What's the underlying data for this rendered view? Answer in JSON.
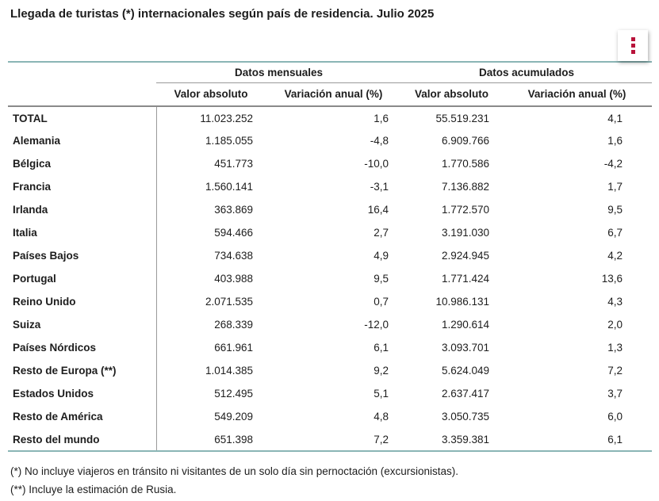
{
  "title": "Llegada de turistas (*) internacionales según país de residencia. Julio 2025",
  "menu_button": {
    "icon": "kebab-menu-icon"
  },
  "table": {
    "group_headers": [
      {
        "label": "Datos mensuales"
      },
      {
        "label": "Datos acumulados"
      }
    ],
    "column_headers": [
      "Valor absoluto",
      "Variación anual (%)",
      "Valor absoluto",
      "Variación anual (%)"
    ],
    "rows": [
      {
        "label": "TOTAL",
        "monthly_value": "11.023.252",
        "monthly_variation_pct": "1,6",
        "accumulated_value": "55.519.231",
        "accumulated_variation_pct": "4,1"
      },
      {
        "label": "Alemania",
        "monthly_value": "1.185.055",
        "monthly_variation_pct": "-4,8",
        "accumulated_value": "6.909.766",
        "accumulated_variation_pct": "1,6"
      },
      {
        "label": "Bélgica",
        "monthly_value": "451.773",
        "monthly_variation_pct": "-10,0",
        "accumulated_value": "1.770.586",
        "accumulated_variation_pct": "-4,2"
      },
      {
        "label": "Francia",
        "monthly_value": "1.560.141",
        "monthly_variation_pct": "-3,1",
        "accumulated_value": "7.136.882",
        "accumulated_variation_pct": "1,7"
      },
      {
        "label": "Irlanda",
        "monthly_value": "363.869",
        "monthly_variation_pct": "16,4",
        "accumulated_value": "1.772.570",
        "accumulated_variation_pct": "9,5"
      },
      {
        "label": "Italia",
        "monthly_value": "594.466",
        "monthly_variation_pct": "2,7",
        "accumulated_value": "3.191.030",
        "accumulated_variation_pct": "6,7"
      },
      {
        "label": "Países Bajos",
        "monthly_value": "734.638",
        "monthly_variation_pct": "4,9",
        "accumulated_value": "2.924.945",
        "accumulated_variation_pct": "4,2"
      },
      {
        "label": "Portugal",
        "monthly_value": "403.988",
        "monthly_variation_pct": "9,5",
        "accumulated_value": "1.771.424",
        "accumulated_variation_pct": "13,6"
      },
      {
        "label": "Reino Unido",
        "monthly_value": "2.071.535",
        "monthly_variation_pct": "0,7",
        "accumulated_value": "10.986.131",
        "accumulated_variation_pct": "4,3"
      },
      {
        "label": "Suiza",
        "monthly_value": "268.339",
        "monthly_variation_pct": "-12,0",
        "accumulated_value": "1.290.614",
        "accumulated_variation_pct": "2,0"
      },
      {
        "label": "Países Nórdicos",
        "monthly_value": "661.961",
        "monthly_variation_pct": "6,1",
        "accumulated_value": "3.093.701",
        "accumulated_variation_pct": "1,3"
      },
      {
        "label": "Resto de Europa (**)",
        "monthly_value": "1.014.385",
        "monthly_variation_pct": "9,2",
        "accumulated_value": "5.624.049",
        "accumulated_variation_pct": "7,2"
      },
      {
        "label": "Estados Unidos",
        "monthly_value": "512.495",
        "monthly_variation_pct": "5,1",
        "accumulated_value": "2.637.417",
        "accumulated_variation_pct": "3,7"
      },
      {
        "label": "Resto de América",
        "monthly_value": "549.209",
        "monthly_variation_pct": "4,8",
        "accumulated_value": "3.050.735",
        "accumulated_variation_pct": "6,0"
      },
      {
        "label": "Resto del mundo",
        "monthly_value": "651.398",
        "monthly_variation_pct": "7,2",
        "accumulated_value": "3.359.381",
        "accumulated_variation_pct": "6,1"
      }
    ]
  },
  "footnotes": [
    "(*) No incluye viajeros en tránsito ni visitantes de un solo día sin pernoctación (excursionistas).",
    "(**) Incluye la estimación de Rusia."
  ],
  "colors": {
    "accent_teal": "#8ab5b5",
    "line_gray": "#9a9a9a",
    "header_line_gray": "#8a8a8a",
    "dots_red": "#b8123a",
    "text_dark": "#1d1d1d",
    "button_bg": "#ffffff"
  }
}
